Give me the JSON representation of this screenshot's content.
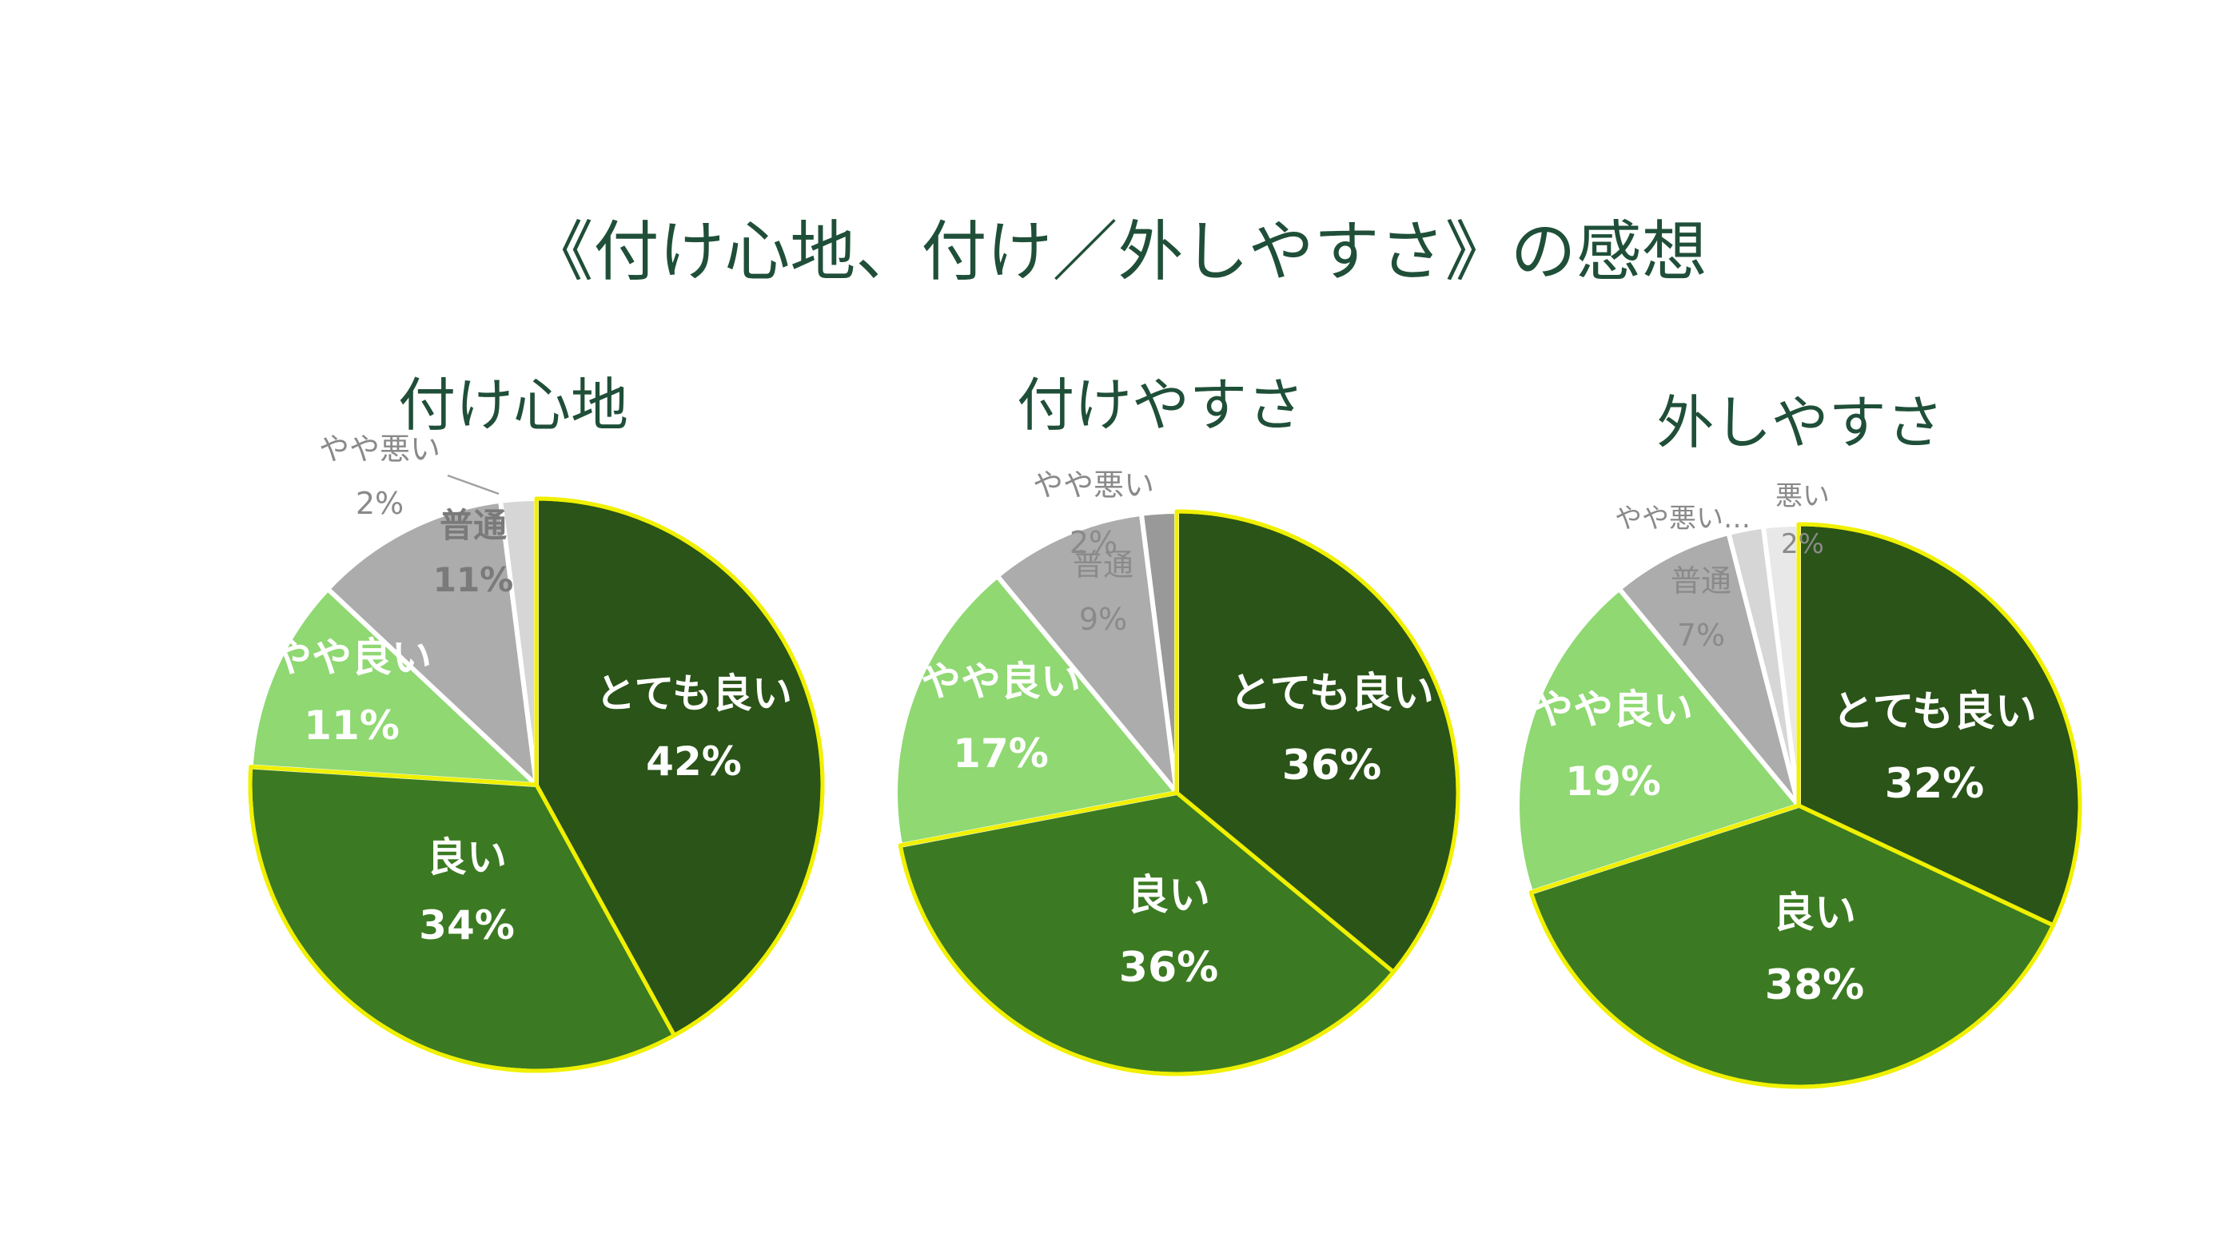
{
  "main_title": "《付け心地、付け／外しやすさ》の感想",
  "chart_data": [
    {
      "type": "pie",
      "title": "付け心地",
      "slices": [
        {
          "label": "とても良い",
          "display_label": "とても良い",
          "value": 42,
          "value_label": "42%",
          "color": "#2a5418"
        },
        {
          "label": "良い",
          "display_label": "良い",
          "value": 34,
          "value_label": "34%",
          "color": "#3b7a22"
        },
        {
          "label": "やや良い",
          "display_label": "やや良い",
          "value": 11,
          "value_label": "11%",
          "color": "#8fd872"
        },
        {
          "label": "普通",
          "display_label": "普通",
          "value": 11,
          "value_label": "11%",
          "color": "#acacac"
        },
        {
          "label": "やや悪い",
          "display_label": "やや悪い",
          "value": 2,
          "value_label": "2%",
          "color": "#d6d6d6"
        }
      ]
    },
    {
      "type": "pie",
      "title": "付けやすさ",
      "slices": [
        {
          "label": "とても良い",
          "display_label": "とても良い",
          "value": 36,
          "value_label": "36%",
          "color": "#2a5418"
        },
        {
          "label": "良い",
          "display_label": "良い",
          "value": 36,
          "value_label": "36%",
          "color": "#3b7a22"
        },
        {
          "label": "やや良い",
          "display_label": "やや良い",
          "value": 17,
          "value_label": "17%",
          "color": "#8fd872"
        },
        {
          "label": "普通",
          "display_label": "普通",
          "value": 9,
          "value_label": "9%",
          "color": "#acacac"
        },
        {
          "label": "やや悪い",
          "display_label": "やや悪い",
          "value": 2,
          "value_label": "2%",
          "color": "#999999"
        }
      ]
    },
    {
      "type": "pie",
      "title": "外しやすさ",
      "slices": [
        {
          "label": "とても良い",
          "display_label": "とても良い",
          "value": 32,
          "value_label": "32%",
          "color": "#2a5418"
        },
        {
          "label": "良い",
          "display_label": "良い",
          "value": 38,
          "value_label": "38%",
          "color": "#3b7a22"
        },
        {
          "label": "やや良い",
          "display_label": "やや良い",
          "value": 19,
          "value_label": "19%",
          "color": "#8fd872"
        },
        {
          "label": "普通",
          "display_label": "普通",
          "value": 7,
          "value_label": "7%",
          "color": "#acacac"
        },
        {
          "label": "やや悪い",
          "display_label": "やや悪い…",
          "value": 2,
          "value_label": "",
          "color": "#d6d6d6"
        },
        {
          "label": "悪い",
          "display_label": "悪い",
          "value": 2,
          "value_label": "2%",
          "color": "#e8e8e8"
        }
      ]
    }
  ]
}
